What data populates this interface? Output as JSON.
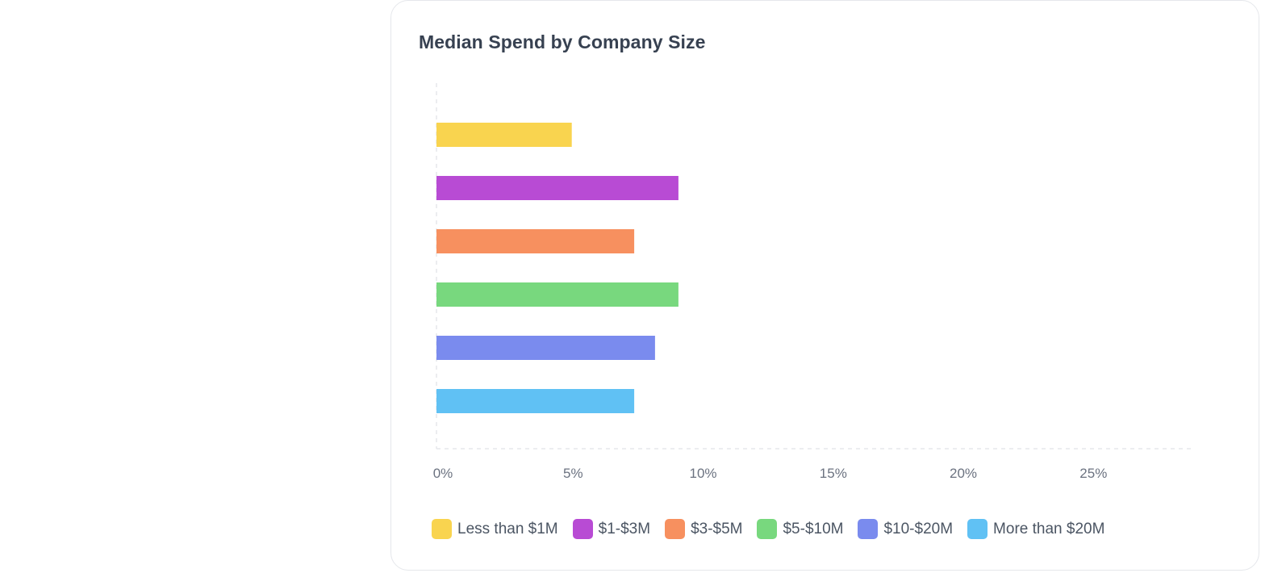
{
  "chart_data": {
    "type": "bar",
    "orientation": "horizontal",
    "title": "Median Spend by Company Size",
    "xlabel": "",
    "ylabel": "",
    "xlim": [
      0,
      29
    ],
    "x_ticks": [
      0,
      5,
      10,
      15,
      20,
      25
    ],
    "x_tick_labels": [
      "0%",
      "5%",
      "10%",
      "15%",
      "20%",
      "25%"
    ],
    "grid": false,
    "legend_position": "bottom-left",
    "categories": [
      "Less than $1M",
      "$1-$3M",
      "$3-$5M",
      "$5-$10M",
      "$10-$20M",
      "More than $20M"
    ],
    "values": [
      5.2,
      9.3,
      7.6,
      9.3,
      8.4,
      7.6
    ],
    "colors": [
      "#f9d44f",
      "#b84bd4",
      "#f7905f",
      "#78d87e",
      "#7a8bee",
      "#60c1f4"
    ],
    "series": [
      {
        "name": "Less than $1M",
        "value": 5.2,
        "color": "#f9d44f"
      },
      {
        "name": "$1-$3M",
        "value": 9.3,
        "color": "#b84bd4"
      },
      {
        "name": "$3-$5M",
        "value": 7.6,
        "color": "#f7905f"
      },
      {
        "name": "$5-$10M",
        "value": 9.3,
        "color": "#78d87e"
      },
      {
        "name": "$10-$20M",
        "value": 8.4,
        "color": "#7a8bee"
      },
      {
        "name": "More than $20M",
        "value": 7.6,
        "color": "#60c1f4"
      }
    ]
  }
}
